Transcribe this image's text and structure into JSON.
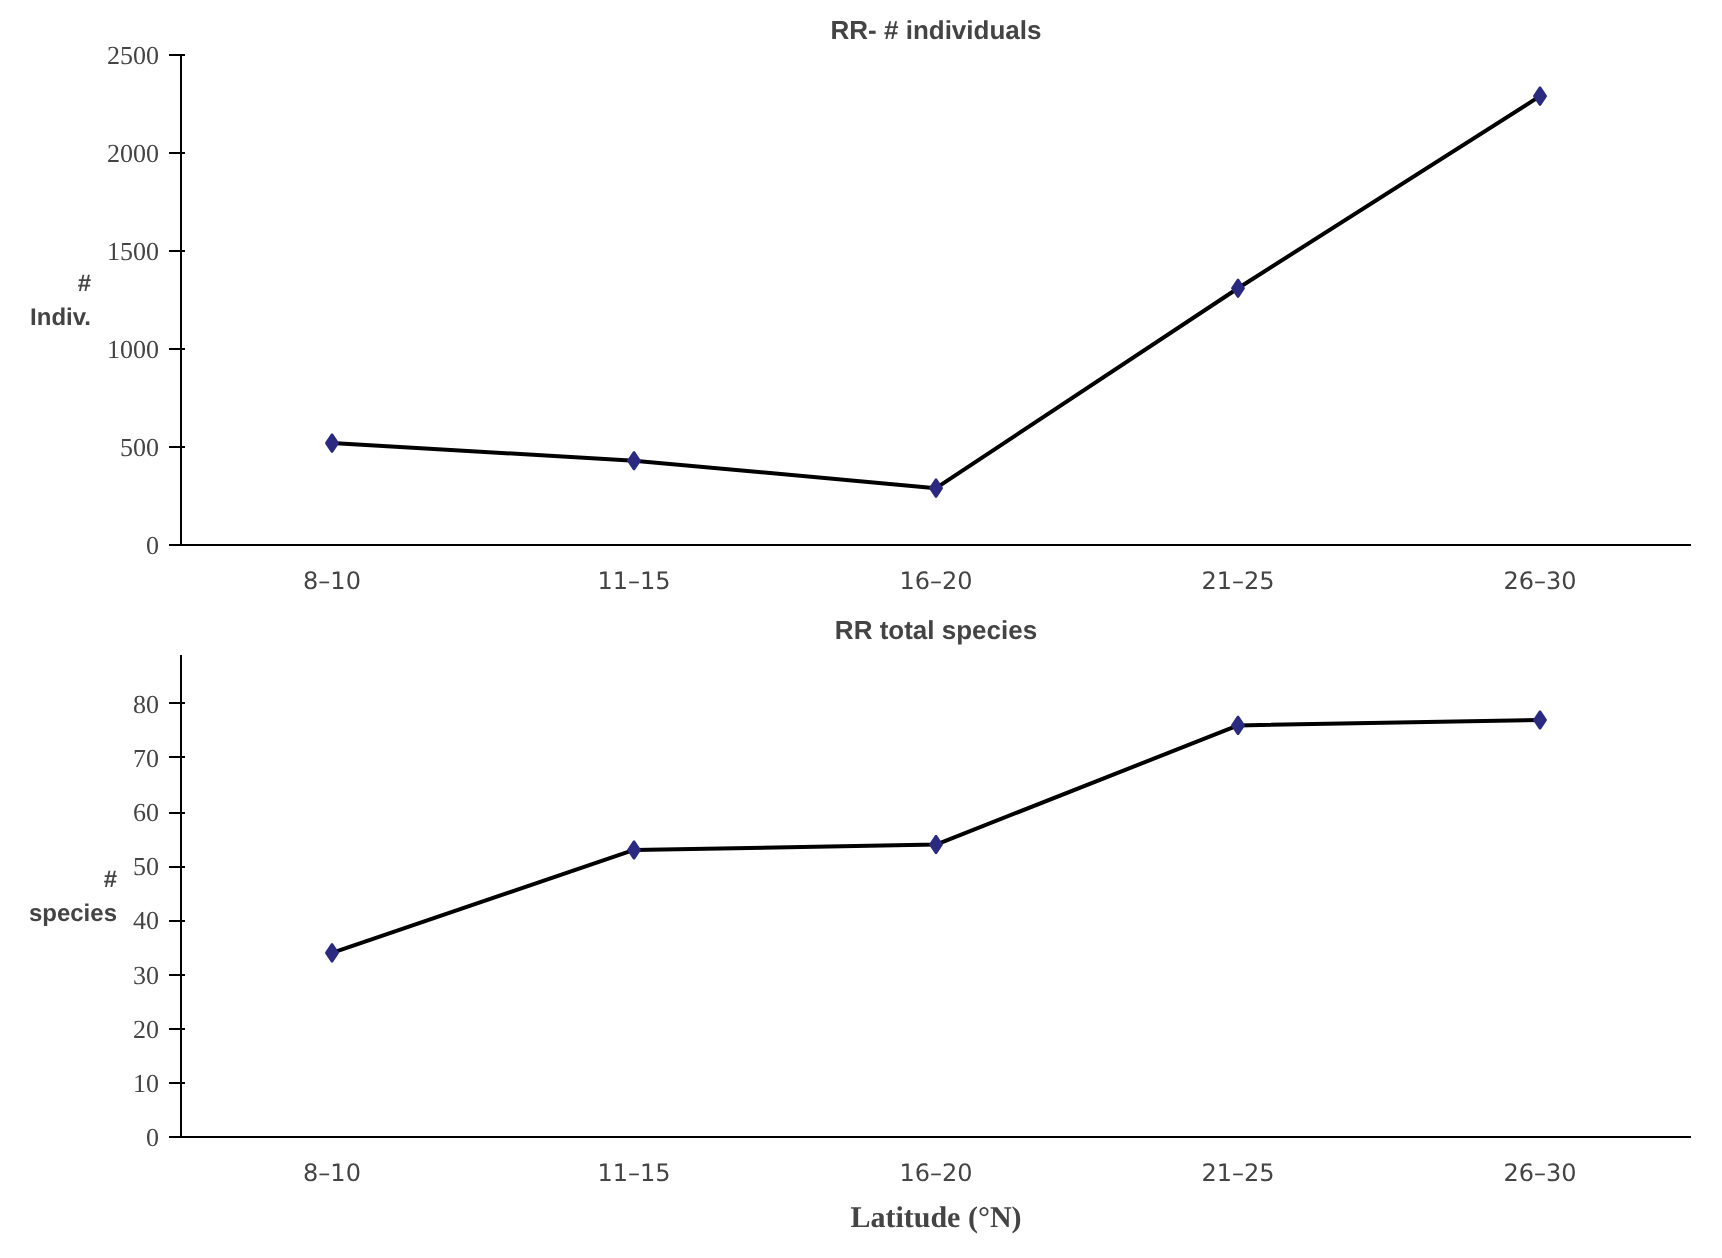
{
  "chart_data": [
    {
      "type": "line",
      "title": "RR- # individuals",
      "ylabel": "#\nIndiv.",
      "categories": [
        "8–10",
        "11–15",
        "16–20",
        "21–25",
        "26–30"
      ],
      "series": [
        {
          "color": "#2a2a80",
          "values": [
            520,
            430,
            290,
            1310,
            2290
          ]
        }
      ],
      "ylim": [
        0,
        2500
      ],
      "yticks": [
        0,
        500,
        1000,
        1500,
        2000,
        2500
      ],
      "marker": "diamond",
      "grid": false
    },
    {
      "type": "line",
      "title": "RR total species",
      "ylabel": "#\nspecies",
      "xlabel": "Latitude (°N)",
      "categories": [
        "8–10",
        "11–15",
        "16–20",
        "21–25",
        "26–30"
      ],
      "series": [
        {
          "color": "#2a2a80",
          "values": [
            34,
            53,
            54,
            76,
            77
          ]
        }
      ],
      "ylim": [
        0,
        89
      ],
      "yticks": [
        0,
        10,
        20,
        30,
        40,
        50,
        60,
        70,
        80
      ],
      "marker": "diamond",
      "grid": false
    }
  ]
}
